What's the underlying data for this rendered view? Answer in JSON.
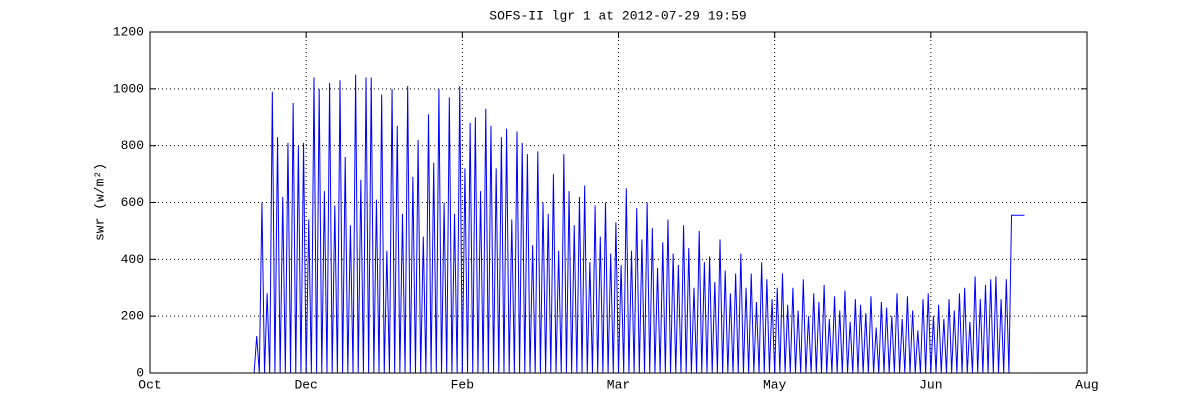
{
  "chart_data": {
    "type": "line",
    "title": "SOFS-II lgr 1 at 2012-07-29 19:59",
    "ylabel": "swr (w/m²)",
    "xlim": [
      0,
      360
    ],
    "ylim": [
      0,
      1200
    ],
    "grid": true,
    "xticks": [
      {
        "value": 0,
        "label": "Oct"
      },
      {
        "value": 60,
        "label": "Dec"
      },
      {
        "value": 120,
        "label": "Feb"
      },
      {
        "value": 180,
        "label": "Mar"
      },
      {
        "value": 240,
        "label": "May"
      },
      {
        "value": 300,
        "label": "Jun"
      },
      {
        "value": 360,
        "label": "Aug"
      }
    ],
    "yticks": [
      0,
      200,
      400,
      600,
      800,
      1000,
      1200
    ],
    "series": [
      {
        "color": "#0000ff",
        "x": [
          40,
          41,
          42,
          43,
          44,
          45,
          46,
          47,
          48,
          49,
          50,
          51,
          52,
          53,
          54,
          55,
          56,
          57,
          58,
          59,
          60,
          61,
          62,
          63,
          64,
          65,
          66,
          67,
          68,
          69,
          70,
          71,
          72,
          73,
          74,
          75,
          76,
          77,
          78,
          79,
          80,
          81,
          82,
          83,
          84,
          85,
          86,
          87,
          88,
          89,
          90,
          91,
          92,
          93,
          94,
          95,
          96,
          97,
          98,
          99,
          100,
          101,
          102,
          103,
          104,
          105,
          106,
          107,
          108,
          109,
          110,
          111,
          112,
          113,
          114,
          115,
          116,
          117,
          118,
          119,
          120,
          121,
          122,
          123,
          124,
          125,
          126,
          127,
          128,
          129,
          130,
          131,
          132,
          133,
          134,
          135,
          136,
          137,
          138,
          139,
          140,
          141,
          142,
          143,
          144,
          145,
          146,
          147,
          148,
          149,
          150,
          151,
          152,
          153,
          154,
          155,
          156,
          157,
          158,
          159,
          160,
          161,
          162,
          163,
          164,
          165,
          166,
          167,
          168,
          169,
          170,
          171,
          172,
          173,
          174,
          175,
          176,
          177,
          178,
          179,
          180,
          181,
          182,
          183,
          184,
          185,
          186,
          187,
          188,
          189,
          190,
          191,
          192,
          193,
          194,
          195,
          196,
          197,
          198,
          199,
          200,
          201,
          202,
          203,
          204,
          205,
          206,
          207,
          208,
          209,
          210,
          211,
          212,
          213,
          214,
          215,
          216,
          217,
          218,
          219,
          220,
          221,
          222,
          223,
          224,
          225,
          226,
          227,
          228,
          229,
          230,
          231,
          232,
          233,
          234,
          235,
          236,
          237,
          238,
          239,
          240,
          241,
          242,
          243,
          244,
          245,
          246,
          247,
          248,
          249,
          250,
          251,
          252,
          253,
          254,
          255,
          256,
          257,
          258,
          259,
          260,
          261,
          262,
          263,
          264,
          265,
          266,
          267,
          268,
          269,
          270,
          271,
          272,
          273,
          274,
          275,
          276,
          277,
          278,
          279,
          280,
          281,
          282,
          283,
          284,
          285,
          286,
          287,
          288,
          289,
          290,
          291,
          292,
          293,
          294,
          295,
          296,
          297,
          298,
          299,
          300,
          301,
          302,
          303,
          304,
          305,
          306,
          307,
          308,
          309,
          310,
          311,
          312,
          313,
          314,
          315,
          316,
          317,
          318,
          319,
          320,
          321,
          322,
          323,
          324,
          325,
          326,
          327,
          328,
          329,
          330,
          331,
          336
        ],
        "values": [
          0,
          130,
          0,
          600,
          0,
          280,
          0,
          990,
          0,
          830,
          0,
          620,
          0,
          810,
          0,
          950,
          0,
          800,
          0,
          810,
          0,
          540,
          0,
          1040,
          0,
          1000,
          0,
          640,
          0,
          1020,
          0,
          590,
          0,
          1030,
          0,
          760,
          0,
          520,
          0,
          1050,
          0,
          680,
          0,
          1040,
          0,
          1040,
          0,
          610,
          0,
          980,
          0,
          430,
          0,
          1000,
          0,
          870,
          0,
          560,
          0,
          1010,
          0,
          690,
          0,
          820,
          0,
          480,
          0,
          910,
          0,
          740,
          0,
          1000,
          0,
          600,
          0,
          970,
          0,
          560,
          0,
          1010,
          0,
          720,
          0,
          880,
          0,
          900,
          0,
          640,
          0,
          930,
          0,
          870,
          0,
          720,
          0,
          830,
          0,
          860,
          0,
          540,
          0,
          850,
          0,
          810,
          0,
          770,
          0,
          450,
          0,
          780,
          0,
          600,
          0,
          560,
          0,
          700,
          0,
          430,
          0,
          770,
          0,
          640,
          0,
          520,
          0,
          620,
          0,
          660,
          0,
          390,
          0,
          590,
          0,
          480,
          0,
          600,
          0,
          420,
          0,
          530,
          0,
          380,
          0,
          650,
          0,
          430,
          0,
          580,
          0,
          470,
          0,
          600,
          0,
          510,
          0,
          370,
          0,
          460,
          0,
          540,
          0,
          420,
          0,
          380,
          0,
          520,
          0,
          440,
          0,
          300,
          0,
          500,
          0,
          390,
          0,
          410,
          0,
          320,
          0,
          470,
          0,
          360,
          0,
          280,
          0,
          350,
          0,
          420,
          0,
          300,
          0,
          350,
          0,
          250,
          0,
          390,
          0,
          330,
          0,
          260,
          0,
          300,
          0,
          350,
          0,
          240,
          0,
          300,
          0,
          220,
          0,
          330,
          0,
          200,
          0,
          280,
          0,
          250,
          0,
          310,
          0,
          190,
          0,
          270,
          0,
          220,
          0,
          290,
          0,
          180,
          0,
          260,
          0,
          240,
          0,
          210,
          0,
          270,
          0,
          160,
          0,
          250,
          0,
          230,
          0,
          200,
          0,
          280,
          0,
          190,
          0,
          270,
          0,
          220,
          0,
          150,
          0,
          260,
          0,
          280,
          0,
          200,
          0,
          240,
          0,
          190,
          0,
          260,
          0,
          220,
          0,
          280,
          0,
          300,
          0,
          180,
          0,
          340,
          0,
          260,
          0,
          310,
          0,
          330,
          0,
          340,
          0,
          260,
          0,
          330,
          0,
          555,
          555
        ]
      }
    ]
  }
}
